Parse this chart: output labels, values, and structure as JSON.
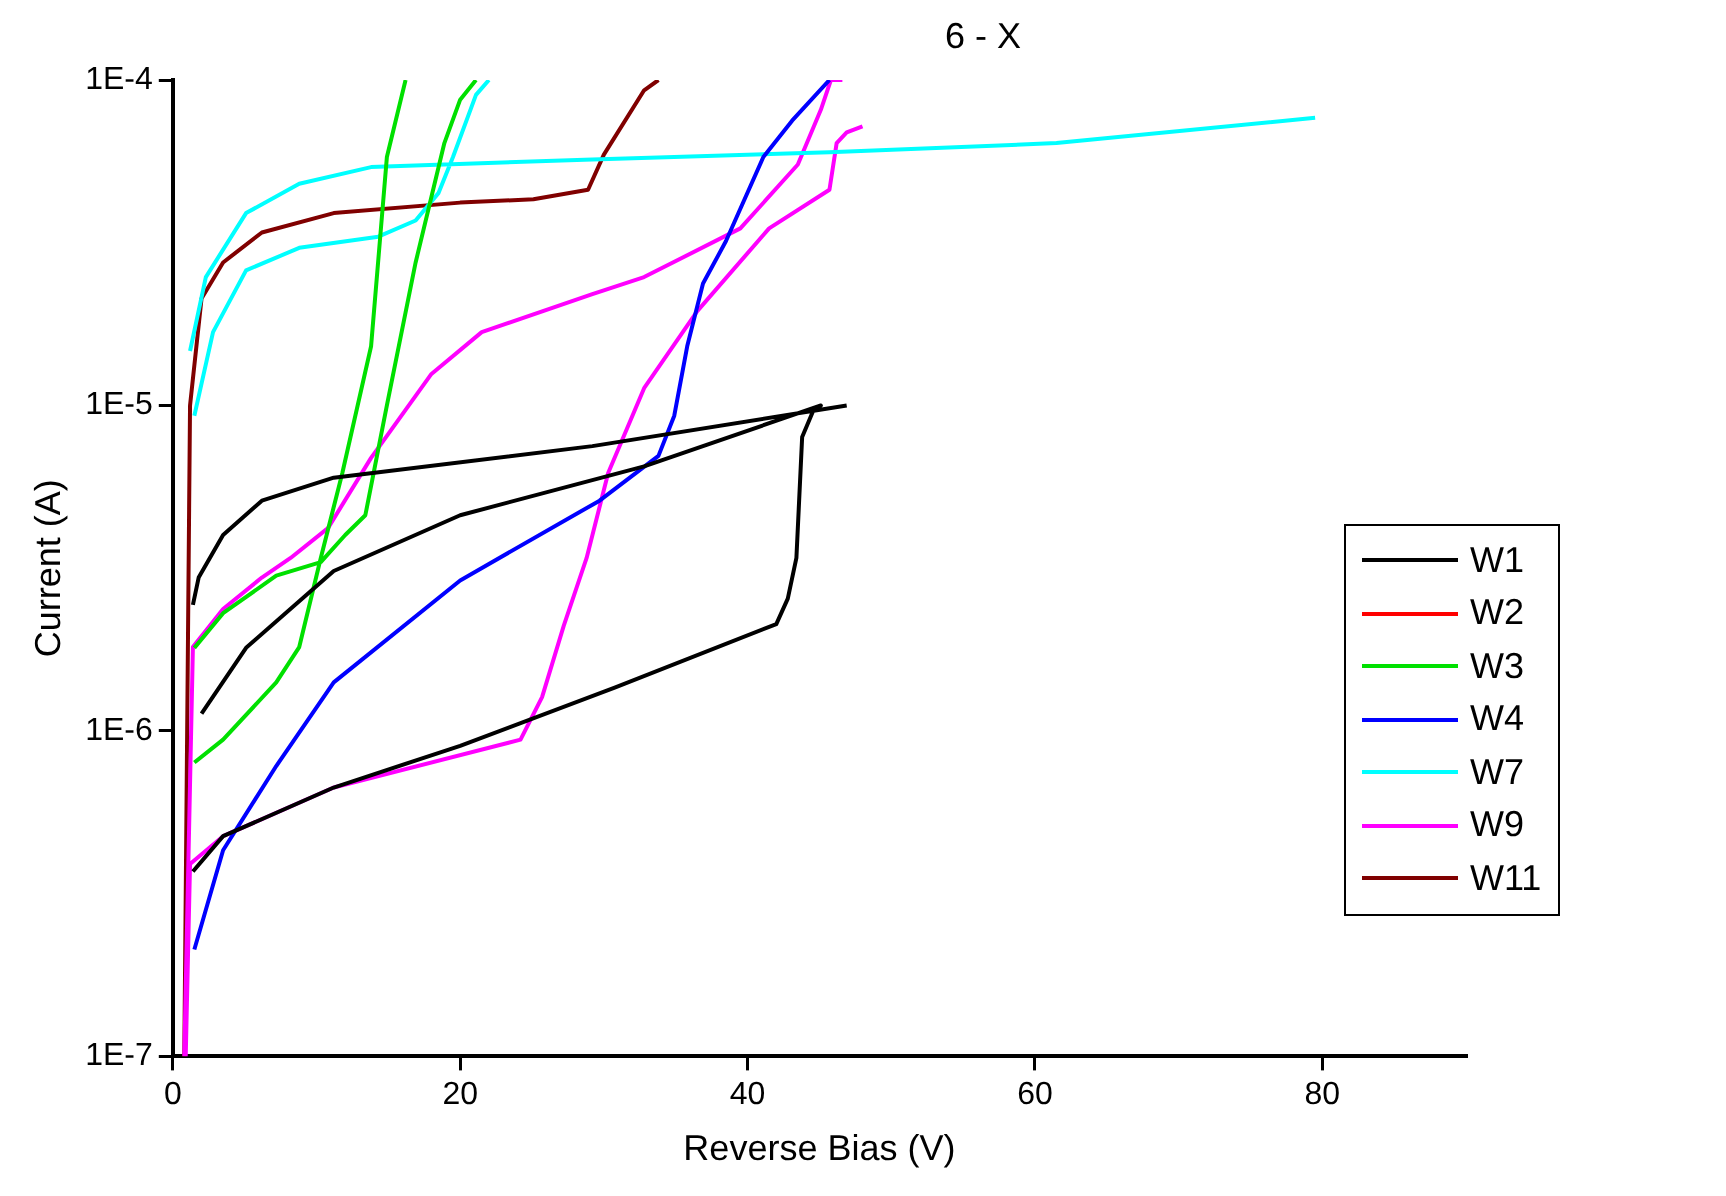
{
  "chart_data": {
    "type": "line",
    "title": "6 - X",
    "xlabel": "Reverse Bias (V)",
    "ylabel": "Current (A)",
    "log": "y",
    "xlim": [
      0,
      90
    ],
    "xticks": [
      0,
      20,
      40,
      60,
      80
    ],
    "ylim": [
      1e-07,
      0.0001
    ],
    "yticks": [
      {
        "value": 1e-07,
        "label": "1E-7"
      },
      {
        "value": 1e-06,
        "label": "1E-6"
      },
      {
        "value": 1e-05,
        "label": "1E-5"
      },
      {
        "value": 0.0001,
        "label": "1E-4"
      }
    ],
    "grid": false,
    "legend": "right",
    "marker": "none",
    "line_style": "solid",
    "series": [
      {
        "name": "W1",
        "color": "#000000",
        "x": [
          1.4,
          3.5,
          11.2,
          20,
          30.8,
          42,
          42.8,
          43.4,
          43.8,
          44.6,
          45.1,
          32.8,
          20,
          11.2,
          5.1,
          2,
          null,
          1.4,
          1.4,
          1.8,
          3.5,
          6.2,
          11.2,
          29.2,
          46.9
        ],
        "values": [
          3.7e-07,
          4.75e-07,
          6.7e-07,
          9e-07,
          1.36e-06,
          2.13e-06,
          2.55e-06,
          3.4e-06,
          8e-06,
          9.7e-06,
          1e-05,
          6.5e-06,
          4.6e-06,
          3.1e-06,
          1.8e-06,
          1.13e-06,
          null,
          2.44e-06,
          2.44e-06,
          2.96e-06,
          4e-06,
          5.1e-06,
          6e-06,
          7.5e-06,
          1e-05
        ]
      },
      {
        "name": "W2",
        "color": "#ff0000"
      },
      {
        "name": "W3",
        "color": "#00e000",
        "x": [
          1.5,
          3.5,
          7.2,
          8.8,
          10.3,
          11.8,
          13.8,
          14.9,
          16.2,
          null,
          1.5,
          3.5,
          7.2,
          10.3,
          12,
          13.4,
          14.9,
          16.9,
          18.9,
          20,
          21.1
        ],
        "values": [
          8e-07,
          9.4e-07,
          1.41e-06,
          1.81e-06,
          3.4e-06,
          6.2e-06,
          1.52e-05,
          5.8e-05,
          0.0001,
          null,
          1.8e-06,
          2.3e-06,
          3e-06,
          3.3e-06,
          4e-06,
          4.6e-06,
          1e-05,
          2.75e-05,
          6.4e-05,
          8.7e-05,
          0.0001
        ]
      },
      {
        "name": "W4",
        "color": "#0000ff",
        "x": [
          1.5,
          3.5,
          7.2,
          11.2,
          20,
          29.7,
          33.8,
          34.9,
          35.8,
          36.9,
          38.5,
          41.1,
          43.1,
          45.7
        ],
        "values": [
          2.13e-07,
          4.3e-07,
          7.8e-07,
          1.41e-06,
          2.9e-06,
          5.1e-06,
          7e-06,
          9.3e-06,
          1.52e-05,
          2.37e-05,
          3.2e-05,
          5.8e-05,
          7.5e-05,
          0.0001
        ]
      },
      {
        "name": "W7",
        "color": "#00ffff",
        "x": [
          1.2,
          2.3,
          5.1,
          8.8,
          13.8,
          29.2,
          45.7,
          61.5,
          79.5,
          null,
          1.5,
          2.8,
          5.1,
          8.8,
          14.3,
          16.9,
          18.5,
          19.5,
          21.1,
          22
        ],
        "values": [
          1.47e-05,
          2.48e-05,
          3.9e-05,
          4.8e-05,
          5.4e-05,
          5.7e-05,
          6e-05,
          6.4e-05,
          7.65e-05,
          null,
          9.3e-06,
          1.68e-05,
          2.6e-05,
          3.05e-05,
          3.3e-05,
          3.7e-05,
          4.5e-05,
          5.8e-05,
          9e-05,
          0.0001
        ]
      },
      {
        "name": "W9",
        "color": "#ff00ff",
        "x": [
          0.9,
          1.2,
          3.5,
          11.2,
          24.2,
          25.7,
          27.2,
          28.8,
          30.3,
          32.8,
          36.5,
          41.5,
          45.7,
          46.2,
          46.9,
          48,
          null,
          0.8,
          1.4,
          3.5,
          6.2,
          8.2,
          10.8,
          13.8,
          18,
          21.5,
          29.2,
          32.8,
          39.5,
          43.5,
          45.1,
          45.8,
          46.6
        ],
        "values": [
          1e-07,
          3.9e-07,
          4.75e-07,
          6.7e-07,
          9.4e-07,
          1.27e-06,
          2.1e-06,
          3.4e-06,
          6.2e-06,
          1.13e-05,
          1.95e-05,
          3.5e-05,
          4.6e-05,
          6.4e-05,
          6.9e-05,
          7.2e-05,
          null,
          1e-07,
          1.81e-06,
          2.37e-06,
          2.96e-06,
          3.4e-06,
          4.2e-06,
          6.9e-06,
          1.25e-05,
          1.68e-05,
          2.2e-05,
          2.48e-05,
          3.5e-05,
          5.5e-05,
          8.1e-05,
          0.0001,
          0.0001
        ]
      },
      {
        "name": "W11",
        "color": "#800000",
        "x": [
          0.8,
          1.2,
          2,
          3.5,
          6.2,
          11.2,
          20,
          25.1,
          28.9,
          30,
          32.8,
          33.8
        ],
        "values": [
          1e-07,
          1e-05,
          2.13e-05,
          2.75e-05,
          3.4e-05,
          3.9e-05,
          4.2e-05,
          4.3e-05,
          4.6e-05,
          5.9e-05,
          9.3e-05,
          0.0001
        ]
      }
    ]
  }
}
